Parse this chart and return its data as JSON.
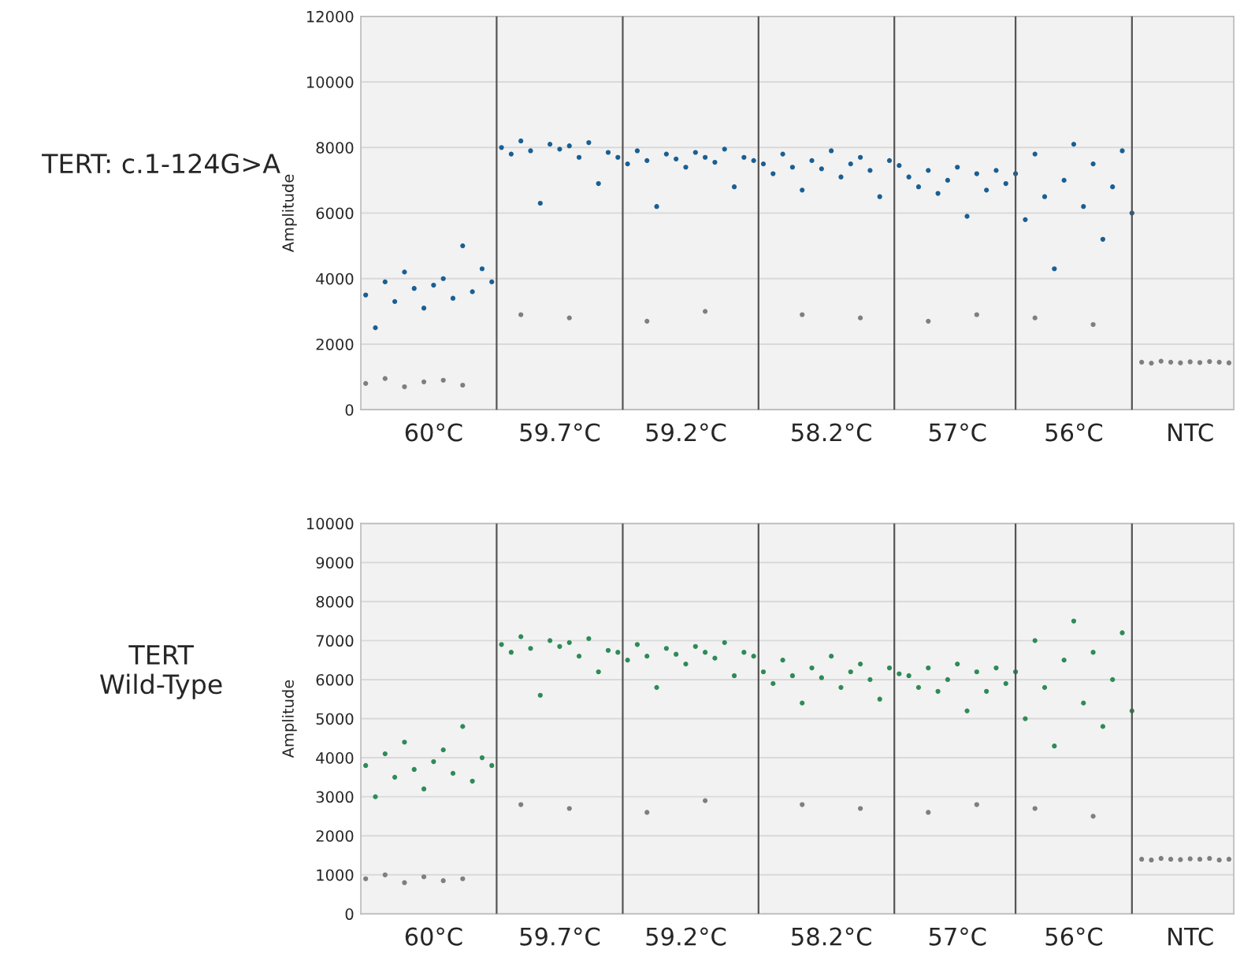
{
  "chart_data": [
    {
      "type": "scatter",
      "title": "TERT: c.1-124G>A",
      "ylabel": "Amplitude",
      "marker": "circle",
      "grid": "y",
      "ylim": [
        0,
        12000
      ],
      "yticks": [
        0,
        2000,
        4000,
        6000,
        8000,
        10000,
        12000
      ],
      "categories": [
        null,
        null,
        null,
        null,
        null,
        null,
        null,
        "60°C",
        null,
        null,
        null,
        null,
        null,
        null,
        null,
        null,
        null,
        null,
        null,
        null,
        "59.7°C",
        null,
        null,
        null,
        null,
        null,
        null,
        null,
        null,
        null,
        null,
        null,
        null,
        "59.2°C",
        null,
        null,
        null,
        null,
        null,
        null,
        null,
        null,
        null,
        null,
        null,
        null,
        null,
        null,
        "58.2°C",
        null,
        null,
        null,
        null,
        null,
        null,
        null,
        null,
        null,
        null,
        null,
        null,
        "57°C",
        null,
        null,
        null,
        null,
        null,
        null,
        null,
        null,
        null,
        null,
        null,
        "56°C",
        null,
        null,
        null,
        null,
        null,
        null,
        null,
        null,
        null,
        null,
        null,
        "NTC",
        null,
        null,
        null,
        null
      ],
      "series": [
        {
          "color": "#7f7f7f",
          "values": [
            800,
            null,
            950,
            null,
            700,
            null,
            850,
            null,
            900,
            null,
            750,
            null,
            null,
            null,
            null,
            null,
            2900,
            null,
            null,
            null,
            null,
            2800,
            null,
            null,
            null,
            null,
            null,
            null,
            null,
            2700,
            null,
            null,
            null,
            null,
            null,
            3000,
            null,
            null,
            null,
            null,
            null,
            null,
            null,
            null,
            null,
            2900,
            null,
            null,
            null,
            null,
            null,
            2800,
            null,
            null,
            null,
            null,
            null,
            null,
            2700,
            null,
            null,
            null,
            null,
            2900,
            null,
            null,
            null,
            null,
            null,
            2800,
            null,
            null,
            null,
            null,
            null,
            2600,
            null,
            null,
            null,
            null,
            1450,
            1420,
            1480,
            1450,
            1430,
            1460,
            1440,
            1470,
            1450,
            1430
          ]
        },
        {
          "color": "#1a5f93",
          "values": [
            3500,
            2500,
            3900,
            3300,
            4200,
            3700,
            3100,
            3800,
            4000,
            3400,
            5000,
            3600,
            4300,
            3900,
            8000,
            7800,
            8200,
            7900,
            6300,
            8100,
            7950,
            8050,
            7700,
            8150,
            6900,
            7850,
            7700,
            7500,
            7900,
            7600,
            6200,
            7800,
            7650,
            7400,
            7850,
            7700,
            7550,
            7950,
            6800,
            7700,
            7600,
            7500,
            7200,
            7800,
            7400,
            6700,
            7600,
            7350,
            7900,
            7100,
            7500,
            7700,
            7300,
            6500,
            7600,
            7450,
            7100,
            6800,
            7300,
            6600,
            7000,
            7400,
            5900,
            7200,
            6700,
            7300,
            6900,
            7200,
            5800,
            7800,
            6500,
            4300,
            7000,
            8100,
            6200,
            7500,
            5200,
            6800,
            7900,
            6000,
            null,
            null,
            null,
            null,
            null,
            null,
            null,
            null,
            null,
            null
          ]
        }
      ]
    },
    {
      "type": "scatter",
      "title": "TERT\nWild-Type",
      "ylabel": "Amplitude",
      "marker": "circle",
      "grid": "y",
      "ylim": [
        0,
        10000
      ],
      "yticks": [
        0,
        1000,
        2000,
        3000,
        4000,
        5000,
        6000,
        7000,
        8000,
        9000,
        10000
      ],
      "categories": [
        null,
        null,
        null,
        null,
        null,
        null,
        null,
        "60°C",
        null,
        null,
        null,
        null,
        null,
        null,
        null,
        null,
        null,
        null,
        null,
        null,
        "59.7°C",
        null,
        null,
        null,
        null,
        null,
        null,
        null,
        null,
        null,
        null,
        null,
        null,
        "59.2°C",
        null,
        null,
        null,
        null,
        null,
        null,
        null,
        null,
        null,
        null,
        null,
        null,
        null,
        null,
        "58.2°C",
        null,
        null,
        null,
        null,
        null,
        null,
        null,
        null,
        null,
        null,
        null,
        null,
        "57°C",
        null,
        null,
        null,
        null,
        null,
        null,
        null,
        null,
        null,
        null,
        null,
        "56°C",
        null,
        null,
        null,
        null,
        null,
        null,
        null,
        null,
        null,
        null,
        null,
        "NTC",
        null,
        null,
        null,
        null
      ],
      "series": [
        {
          "color": "#7f7f7f",
          "values": [
            900,
            null,
            1000,
            null,
            800,
            null,
            950,
            null,
            850,
            null,
            900,
            null,
            null,
            null,
            null,
            null,
            2800,
            null,
            null,
            null,
            null,
            2700,
            null,
            null,
            null,
            null,
            null,
            null,
            null,
            2600,
            null,
            null,
            null,
            null,
            null,
            2900,
            null,
            null,
            null,
            null,
            null,
            null,
            null,
            null,
            null,
            2800,
            null,
            null,
            null,
            null,
            null,
            2700,
            null,
            null,
            null,
            null,
            null,
            null,
            2600,
            null,
            null,
            null,
            null,
            2800,
            null,
            null,
            null,
            null,
            null,
            2700,
            null,
            null,
            null,
            null,
            null,
            2500,
            null,
            null,
            null,
            null,
            1400,
            1380,
            1420,
            1400,
            1390,
            1410,
            1400,
            1420,
            1380,
            1400
          ]
        },
        {
          "color": "#2e8b57",
          "values": [
            3800,
            3000,
            4100,
            3500,
            4400,
            3700,
            3200,
            3900,
            4200,
            3600,
            4800,
            3400,
            4000,
            3800,
            6900,
            6700,
            7100,
            6800,
            5600,
            7000,
            6850,
            6950,
            6600,
            7050,
            6200,
            6750,
            6700,
            6500,
            6900,
            6600,
            5800,
            6800,
            6650,
            6400,
            6850,
            6700,
            6550,
            6950,
            6100,
            6700,
            6600,
            6200,
            5900,
            6500,
            6100,
            5400,
            6300,
            6050,
            6600,
            5800,
            6200,
            6400,
            6000,
            5500,
            6300,
            6150,
            6100,
            5800,
            6300,
            5700,
            6000,
            6400,
            5200,
            6200,
            5700,
            6300,
            5900,
            6200,
            5000,
            7000,
            5800,
            4300,
            6500,
            7500,
            5400,
            6700,
            4800,
            6000,
            7200,
            5200,
            null,
            null,
            null,
            null,
            null,
            null,
            null,
            null,
            null,
            null
          ]
        }
      ]
    }
  ]
}
